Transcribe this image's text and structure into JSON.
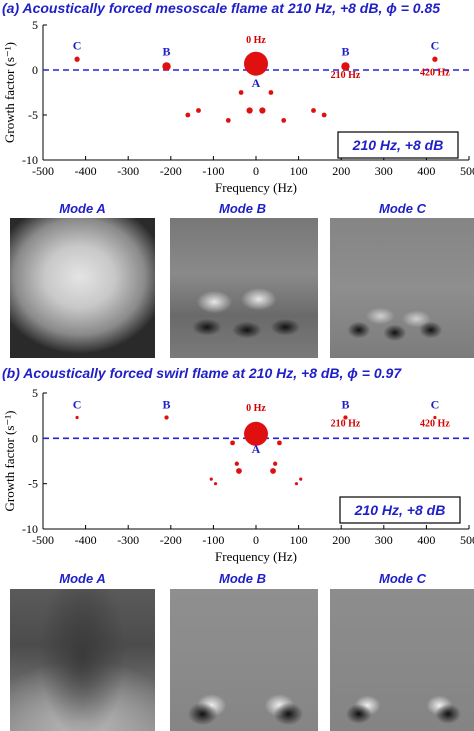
{
  "panels": [
    {
      "title": "(a) Acoustically forced mesoscale flame at 210 Hz, +8 dB, ϕ = 0.85",
      "modes": [
        "Mode A",
        "Mode B",
        "Mode C"
      ]
    },
    {
      "title": "(b) Acoustically forced swirl flame at 210 Hz, +8 dB, ϕ = 0.97",
      "modes": [
        "Mode A",
        "Mode B",
        "Mode C"
      ]
    }
  ],
  "chart_data": [
    {
      "type": "scatter",
      "title": "",
      "xlabel": "Frequency (Hz)",
      "ylabel": "Growth factor (s⁻¹)",
      "xlim": [
        -500,
        500
      ],
      "ylim": [
        -10,
        5
      ],
      "xticks": [
        -500,
        -400,
        -300,
        -200,
        -100,
        0,
        100,
        200,
        300,
        400,
        500
      ],
      "yticks": [
        -10,
        -5,
        0,
        5
      ],
      "reference_line": 0,
      "legend_box": "210 Hz, +8 dB",
      "points": [
        {
          "x": 0,
          "y": 0.7,
          "size": 1.0
        },
        {
          "x": -210,
          "y": 0.4,
          "size": 0.35
        },
        {
          "x": 210,
          "y": 0.4,
          "size": 0.35
        },
        {
          "x": -420,
          "y": 1.2,
          "size": 0.22
        },
        {
          "x": 420,
          "y": 1.2,
          "size": 0.22
        },
        {
          "x": -35,
          "y": -2.5,
          "size": 0.2
        },
        {
          "x": 35,
          "y": -2.5,
          "size": 0.2
        },
        {
          "x": -15,
          "y": -4.5,
          "size": 0.26
        },
        {
          "x": 15,
          "y": -4.5,
          "size": 0.26
        },
        {
          "x": -135,
          "y": -4.5,
          "size": 0.2
        },
        {
          "x": 135,
          "y": -4.5,
          "size": 0.2
        },
        {
          "x": -160,
          "y": -5.0,
          "size": 0.2
        },
        {
          "x": 160,
          "y": -5.0,
          "size": 0.2
        },
        {
          "x": -65,
          "y": -5.6,
          "size": 0.2
        },
        {
          "x": 65,
          "y": -5.6,
          "size": 0.2
        }
      ],
      "annotations": [
        {
          "text": "0 Hz",
          "x": 0,
          "y": 3.0,
          "color": "#d40000"
        },
        {
          "text": "A",
          "x": 0,
          "y": -1.9,
          "color": "#1f1fc8"
        },
        {
          "text": "B",
          "x": -210,
          "y": 1.6,
          "color": "#1f1fc8"
        },
        {
          "text": "B",
          "x": 210,
          "y": 1.6,
          "color": "#1f1fc8"
        },
        {
          "text": "C",
          "x": -420,
          "y": 2.3,
          "color": "#1f1fc8"
        },
        {
          "text": "C",
          "x": 420,
          "y": 2.3,
          "color": "#1f1fc8"
        },
        {
          "text": "210 Hz",
          "x": 210,
          "y": -0.9,
          "color": "#d40000"
        },
        {
          "text": "420 Hz",
          "x": 420,
          "y": -0.6,
          "color": "#d40000"
        }
      ]
    },
    {
      "type": "scatter",
      "title": "",
      "xlabel": "Frequency (Hz)",
      "ylabel": "Growth factor (s⁻¹)",
      "xlim": [
        -500,
        500
      ],
      "ylim": [
        -10,
        5
      ],
      "xticks": [
        -500,
        -400,
        -300,
        -200,
        -100,
        0,
        100,
        200,
        300,
        400,
        500
      ],
      "yticks": [
        -10,
        -5,
        0,
        5
      ],
      "reference_line": 0,
      "legend_box": "210 Hz, +8 dB",
      "points": [
        {
          "x": 0,
          "y": 0.5,
          "size": 1.0
        },
        {
          "x": -210,
          "y": 2.3,
          "size": 0.18
        },
        {
          "x": 210,
          "y": 2.3,
          "size": 0.18
        },
        {
          "x": -420,
          "y": 2.3,
          "size": 0.12
        },
        {
          "x": 420,
          "y": 2.3,
          "size": 0.12
        },
        {
          "x": -55,
          "y": -0.5,
          "size": 0.2
        },
        {
          "x": 55,
          "y": -0.5,
          "size": 0.2
        },
        {
          "x": -45,
          "y": -2.8,
          "size": 0.18
        },
        {
          "x": 45,
          "y": -2.8,
          "size": 0.18
        },
        {
          "x": -40,
          "y": -3.6,
          "size": 0.24
        },
        {
          "x": 40,
          "y": -3.6,
          "size": 0.24
        },
        {
          "x": -105,
          "y": -4.5,
          "size": 0.12
        },
        {
          "x": 105,
          "y": -4.5,
          "size": 0.12
        },
        {
          "x": -95,
          "y": -5.0,
          "size": 0.12
        },
        {
          "x": 95,
          "y": -5.0,
          "size": 0.12
        }
      ],
      "annotations": [
        {
          "text": "0 Hz",
          "x": 0,
          "y": 3.0,
          "color": "#d40000"
        },
        {
          "text": "A",
          "x": 0,
          "y": -1.6,
          "color": "#1f1fc8"
        },
        {
          "text": "B",
          "x": -210,
          "y": 3.3,
          "color": "#1f1fc8"
        },
        {
          "text": "B",
          "x": 210,
          "y": 3.3,
          "color": "#1f1fc8"
        },
        {
          "text": "C",
          "x": -420,
          "y": 3.3,
          "color": "#1f1fc8"
        },
        {
          "text": "C",
          "x": 420,
          "y": 3.3,
          "color": "#1f1fc8"
        },
        {
          "text": "210 Hz",
          "x": 210,
          "y": 1.3,
          "color": "#d40000"
        },
        {
          "text": "420 Hz",
          "x": 420,
          "y": 1.3,
          "color": "#d40000"
        }
      ]
    }
  ]
}
